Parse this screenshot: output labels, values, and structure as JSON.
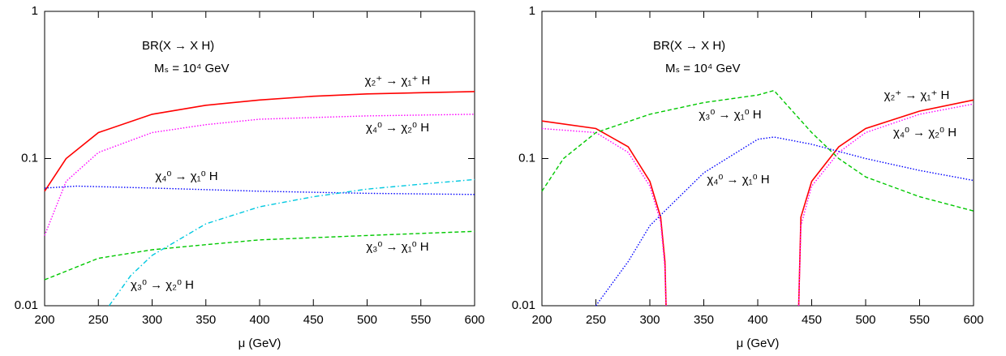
{
  "chart_data": [
    {
      "type": "line",
      "annotations": [
        "BR(X → X H)",
        "Mₛ = 10⁴ GeV"
      ],
      "x_label": "μ (GeV)",
      "xlim": [
        200,
        600
      ],
      "xticks": [
        200,
        250,
        300,
        350,
        400,
        450,
        500,
        550,
        600
      ],
      "ylim": [
        0.01,
        1
      ],
      "yticks": [
        0.01,
        0.1,
        1
      ],
      "log_y": true,
      "series": [
        {
          "name": "χ₂⁺ → χ₁⁺ H",
          "color": "#ff0000",
          "style": "solid",
          "x": [
            200,
            220,
            250,
            300,
            350,
            400,
            450,
            500,
            550,
            600
          ],
          "values": [
            0.06,
            0.1,
            0.15,
            0.2,
            0.23,
            0.25,
            0.265,
            0.275,
            0.28,
            0.285
          ]
        },
        {
          "name": "χ₄⁰ → χ₂⁰ H",
          "color": "#ff00ff",
          "style": "dotted",
          "x": [
            200,
            220,
            250,
            300,
            350,
            400,
            500,
            600
          ],
          "values": [
            0.03,
            0.07,
            0.11,
            0.15,
            0.17,
            0.185,
            0.195,
            0.2
          ]
        },
        {
          "name": "χ₄⁰ → χ₁⁰ H",
          "color": "#0000ff",
          "style": "dotted",
          "x": [
            200,
            230,
            300,
            400,
            500,
            600
          ],
          "values": [
            0.063,
            0.065,
            0.063,
            0.06,
            0.058,
            0.057
          ]
        },
        {
          "name": "χ₃⁰ → χ₁⁰ H",
          "color": "#00c800",
          "style": "dashed",
          "x": [
            200,
            250,
            300,
            350,
            400,
            500,
            600
          ],
          "values": [
            0.015,
            0.021,
            0.024,
            0.026,
            0.028,
            0.03,
            0.032
          ]
        },
        {
          "name": "χ₃⁰ → χ₂⁰ H",
          "color": "#00c8e0",
          "style": "dashdot",
          "x": [
            260,
            280,
            300,
            350,
            400,
            450,
            500,
            550,
            600
          ],
          "values": [
            0.01,
            0.016,
            0.022,
            0.036,
            0.047,
            0.055,
            0.062,
            0.067,
            0.072
          ]
        }
      ]
    },
    {
      "type": "line",
      "annotations": [
        "BR(X → X H)",
        "Mₛ = 10⁴ GeV"
      ],
      "x_label": "μ (GeV)",
      "xlim": [
        200,
        600
      ],
      "xticks": [
        200,
        250,
        300,
        350,
        400,
        450,
        500,
        550,
        600
      ],
      "ylim": [
        0.01,
        1
      ],
      "yticks": [
        0.01,
        0.1,
        1
      ],
      "log_y": true,
      "series": [
        {
          "name": "χ₂⁺ → χ₁⁺ H",
          "color": "#ff0000",
          "style": "solid",
          "x": [
            200,
            250,
            280,
            300,
            310,
            314,
            315,
            360,
            438,
            440,
            450,
            475,
            500,
            550,
            600
          ],
          "values": [
            0.18,
            0.16,
            0.12,
            0.07,
            0.04,
            0.02,
            0.01,
            null,
            0.01,
            0.04,
            0.07,
            0.12,
            0.16,
            0.21,
            0.25
          ]
        },
        {
          "name": "χ₄⁰ → χ₂⁰ H",
          "color": "#ff00ff",
          "style": "dotted",
          "x": [
            200,
            250,
            280,
            300,
            310,
            314,
            315,
            360,
            438,
            440,
            450,
            475,
            500,
            550,
            600
          ],
          "values": [
            0.16,
            0.15,
            0.11,
            0.065,
            0.037,
            0.018,
            0.01,
            null,
            0.01,
            0.035,
            0.065,
            0.11,
            0.15,
            0.2,
            0.235
          ]
        },
        {
          "name": "χ₃⁰ → χ₁⁰ H",
          "color": "#00c800",
          "style": "dashed",
          "x": [
            200,
            220,
            250,
            300,
            350,
            400,
            415,
            450,
            475,
            500,
            550,
            600
          ],
          "values": [
            0.06,
            0.1,
            0.15,
            0.2,
            0.24,
            0.27,
            0.29,
            0.15,
            0.1,
            0.075,
            0.055,
            0.044
          ]
        },
        {
          "name": "χ₄⁰ → χ₁⁰ H",
          "color": "#0000ff",
          "style": "dotted",
          "x": [
            250,
            280,
            300,
            350,
            400,
            415,
            450,
            500,
            550,
            600
          ],
          "values": [
            0.01,
            0.02,
            0.035,
            0.08,
            0.135,
            0.14,
            0.125,
            0.1,
            0.083,
            0.071
          ]
        }
      ]
    }
  ]
}
